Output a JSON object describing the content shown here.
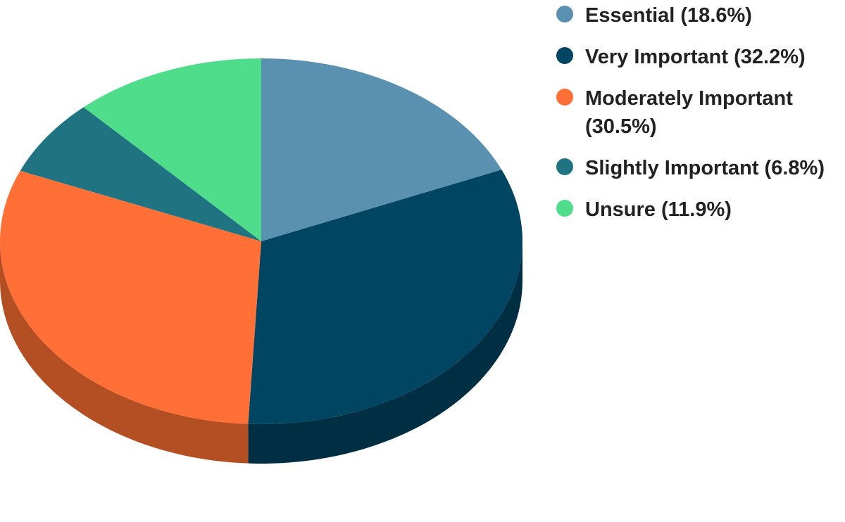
{
  "chart_data": {
    "type": "pie",
    "title": "",
    "slices": [
      {
        "label": "Essential (18.6%)",
        "value": 18.6,
        "color": "#5a91b0",
        "side_color": "#3d6680"
      },
      {
        "label": "Very Important (32.2%)",
        "value": 32.2,
        "color": "#004562",
        "side_color": "#002f44"
      },
      {
        "label": "Moderately Important (30.5%)",
        "value": 30.5,
        "color": "#ff6f36",
        "side_color": "#b44f24"
      },
      {
        "label": "Slightly Important (6.8%)",
        "value": 6.8,
        "color": "#207482",
        "side_color": "#16525c"
      },
      {
        "label": "Unsure (11.9%)",
        "value": 11.9,
        "color": "#4fdd8b",
        "side_color": "#37a064"
      }
    ],
    "legend_position": "top-right",
    "style": "3d-tilted"
  }
}
